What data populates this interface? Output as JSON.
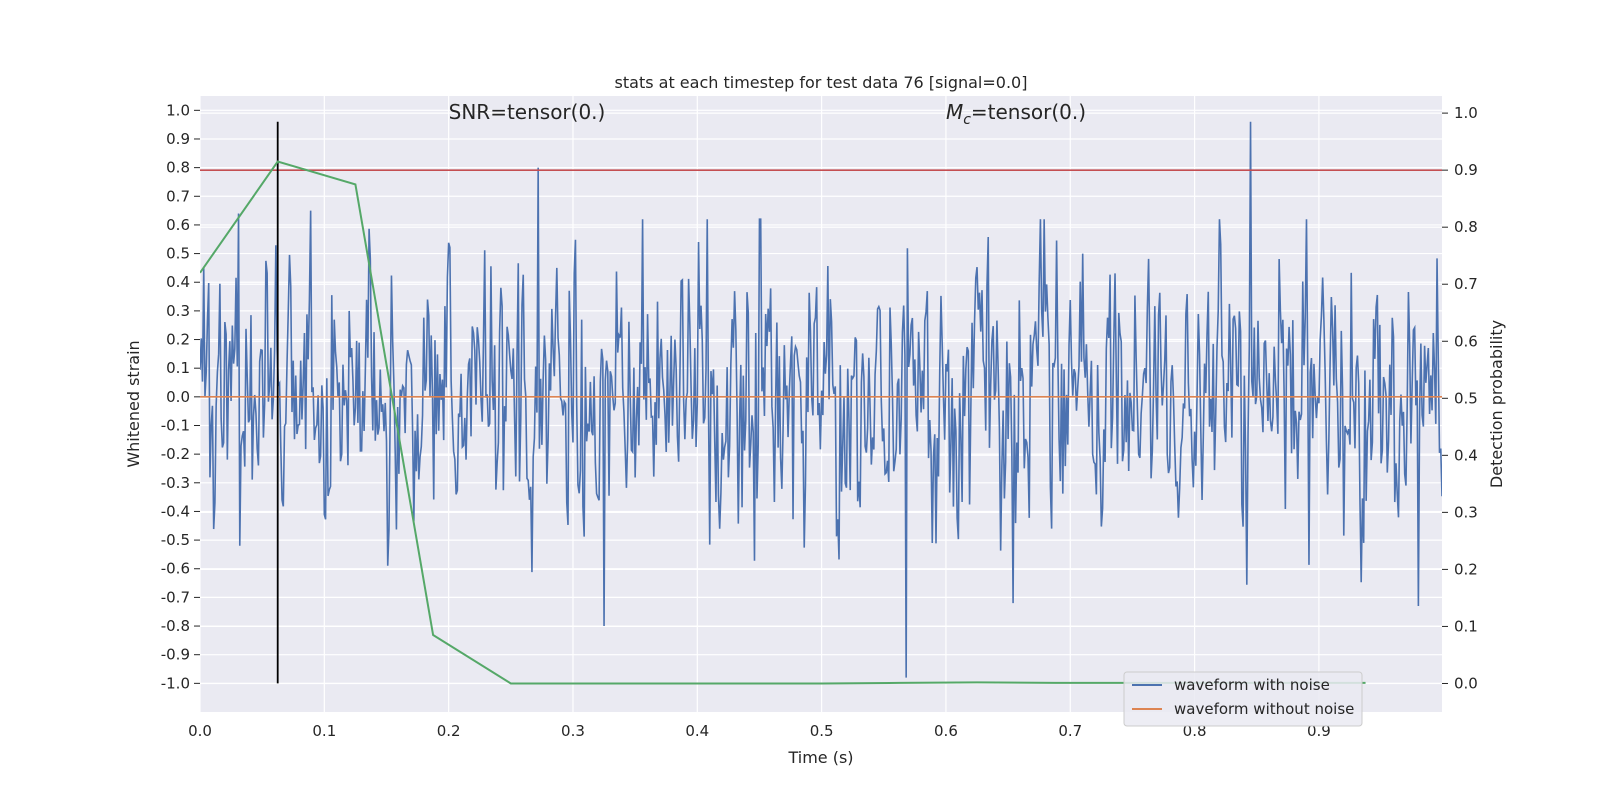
{
  "chart_data": {
    "type": "line",
    "title": "stats at each timestep for test data 76 [signal=0.0]",
    "xlabel": "Time (s)",
    "ylabel": "Whitened strain",
    "ylabel_right": "Detection probability",
    "xlim": [
      0.0,
      0.999
    ],
    "ylim": [
      -1.1,
      1.05
    ],
    "ylim_right": [
      -0.05,
      1.03
    ],
    "x_ticks": [
      "0.0",
      "0.1",
      "0.2",
      "0.3",
      "0.4",
      "0.5",
      "0.6",
      "0.7",
      "0.8",
      "0.9"
    ],
    "y_ticks": [
      "1.0",
      "0.9",
      "0.8",
      "0.7",
      "0.6",
      "0.5",
      "0.4",
      "0.3",
      "0.2",
      "0.1",
      "0.0",
      "-0.1",
      "-0.2",
      "-0.3",
      "-0.4",
      "-0.5",
      "-0.6",
      "-0.7",
      "-0.8",
      "-0.9",
      "-1.0"
    ],
    "y_ticks_right": [
      "1.0",
      "0.9",
      "0.8",
      "0.7",
      "0.6",
      "0.5",
      "0.4",
      "0.3",
      "0.2",
      "0.1",
      "0.0"
    ],
    "grid": true,
    "legend_position": "lower-right",
    "annotations": [
      {
        "text": "SNR=tensor(0.)",
        "x": 0.2,
        "y": 0.97
      },
      {
        "text_prefix": "M",
        "text_subscript": "c",
        "text_suffix": "=tensor(0.)",
        "x": 0.6,
        "y": 0.97
      }
    ],
    "threshold_line": {
      "y_right": 0.9,
      "color": "#c44e52"
    },
    "marker_line": {
      "x": 0.0625,
      "y_range": [
        -1.0,
        0.96
      ],
      "color": "#000000"
    },
    "detection_probability": {
      "color": "#55a868",
      "x": [
        0.0,
        0.0625,
        0.125,
        0.1875,
        0.25,
        0.3125,
        0.375,
        0.4375,
        0.5,
        0.5625,
        0.625,
        0.6875,
        0.75,
        0.8125,
        0.875,
        0.9375
      ],
      "y": [
        0.72,
        0.915,
        0.875,
        0.085,
        0.0,
        0.0,
        0.0,
        0.0,
        0.0,
        0.001,
        0.002,
        0.001,
        0.001,
        0.001,
        0.001,
        0.001
      ]
    },
    "series": [
      {
        "name": "waveform with noise",
        "color": "#4c72b0",
        "samples": 1000,
        "dt": 0.001,
        "std": 0.22,
        "peak_points": [
          [
            0.031,
            0.64
          ],
          [
            0.089,
            0.65
          ],
          [
            0.272,
            0.8
          ],
          [
            0.325,
            -0.8
          ],
          [
            0.568,
            -0.98
          ],
          [
            0.845,
            0.96
          ],
          [
            0.98,
            -0.73
          ]
        ]
      },
      {
        "name": "waveform without noise",
        "color": "#dd8452",
        "value": 0.0
      }
    ]
  }
}
